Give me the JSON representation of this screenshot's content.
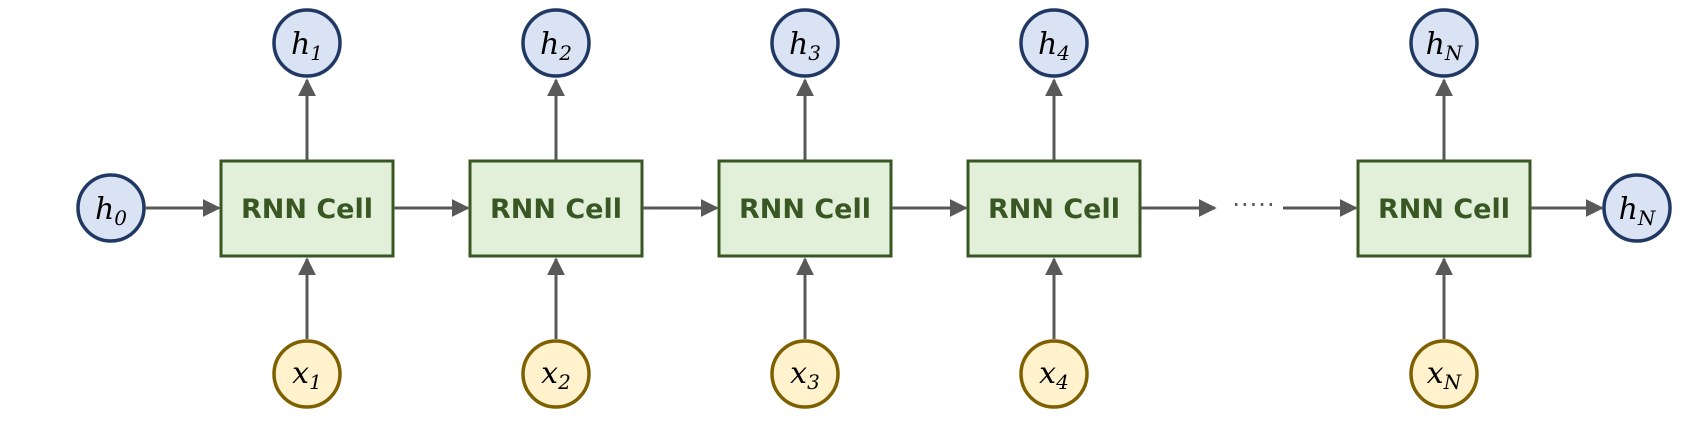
{
  "cell_label": "RNN Cell",
  "initial_state": {
    "symbol": "h",
    "subscript": "0"
  },
  "final_state": {
    "symbol": "h",
    "subscript": "N"
  },
  "ellipsis": "·····",
  "steps": [
    {
      "cell": "RNN Cell",
      "h": "h",
      "h_sub": "1",
      "x": "x",
      "x_sub": "1"
    },
    {
      "cell": "RNN Cell",
      "h": "h",
      "h_sub": "2",
      "x": "x",
      "x_sub": "2"
    },
    {
      "cell": "RNN Cell",
      "h": "h",
      "h_sub": "3",
      "x": "x",
      "x_sub": "3"
    },
    {
      "cell": "RNN Cell",
      "h": "h",
      "h_sub": "4",
      "x": "x",
      "x_sub": "4"
    },
    {
      "cell": "RNN Cell",
      "h": "h",
      "h_sub": "N",
      "x": "x",
      "x_sub": "N"
    }
  ],
  "colors": {
    "cell_fill": "#e2efd9",
    "cell_border": "#385723",
    "hidden_fill": "#dae3f3",
    "hidden_border": "#203864",
    "input_fill": "#fff2cc",
    "input_border": "#7f6000",
    "arrow": "#595959"
  }
}
